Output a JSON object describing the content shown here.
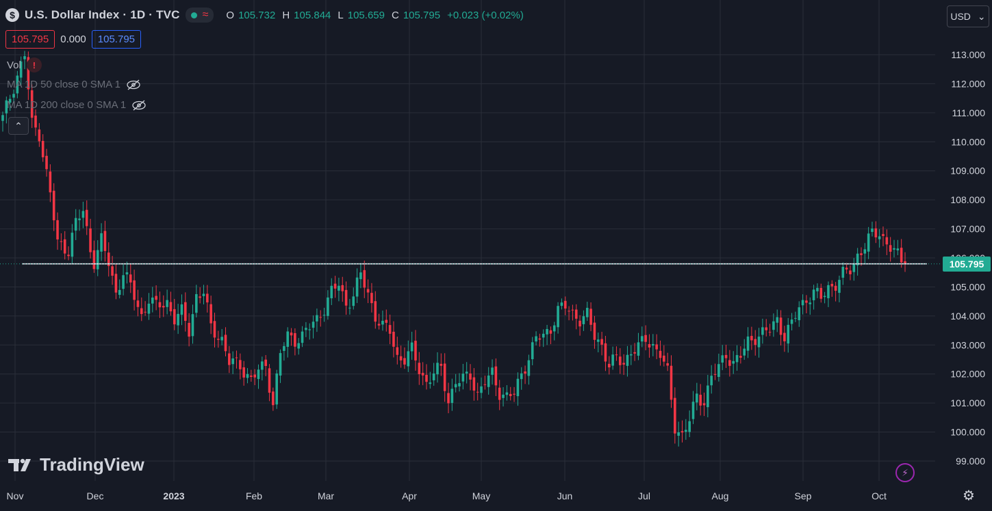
{
  "header": {
    "symbol_icon": "$",
    "title": "U.S. Dollar Index · 1D · TVC",
    "status_dot_color": "#22ab94",
    "ohlc": [
      {
        "key": "O",
        "value": "105.732"
      },
      {
        "key": "H",
        "value": "105.844"
      },
      {
        "key": "L",
        "value": "105.659"
      },
      {
        "key": "C",
        "value": "105.795"
      }
    ],
    "change": "+0.023 (+0.02%)"
  },
  "price_boxes": {
    "bid": "105.795",
    "spread": "0.000",
    "ask": "105.795"
  },
  "indicators": {
    "vol": "Vol",
    "warning_icon": "!",
    "ma50": "MA  1D 50 close 0 SMA 1",
    "ma200": "MA  1D 200 close 0 SMA 1"
  },
  "currency": {
    "label": "USD",
    "icon": "chevron-down-icon"
  },
  "branding": {
    "logo_text": "TradingView"
  },
  "colors": {
    "up": "#22ab94",
    "down": "#f23645",
    "background": "#161a25",
    "grid": "#2a2e39"
  },
  "chart_data": {
    "type": "candlestick",
    "ylim": [
      98.4,
      113.7
    ],
    "y_ticks": [
      "113.000",
      "112.000",
      "111.000",
      "110.000",
      "109.000",
      "108.000",
      "107.000",
      "106.000",
      "105.000",
      "104.000",
      "103.000",
      "102.000",
      "101.000",
      "100.000",
      "99.000"
    ],
    "x_labels": [
      "Nov",
      "Dec",
      "2023",
      "Feb",
      "Mar",
      "Apr",
      "May",
      "Jun",
      "Jul",
      "Aug",
      "Sep",
      "Oct"
    ],
    "last_price": "105.795",
    "horizontal_line": 105.795,
    "close_path": [
      [
        0,
        110.8
      ],
      [
        4,
        112.3
      ],
      [
        6,
        113.0
      ],
      [
        8,
        110.6
      ],
      [
        10,
        110.3
      ],
      [
        13,
        108.2
      ],
      [
        15,
        106.5
      ],
      [
        18,
        106.3
      ],
      [
        20,
        107.2
      ],
      [
        22,
        107.6
      ],
      [
        24,
        106.3
      ],
      [
        25,
        105.9
      ],
      [
        27,
        106.6
      ],
      [
        29,
        105.8
      ],
      [
        31,
        104.8
      ],
      [
        33,
        105.5
      ],
      [
        35,
        105.0
      ],
      [
        38,
        104.0
      ],
      [
        40,
        104.6
      ],
      [
        42,
        104.3
      ],
      [
        45,
        104.5
      ],
      [
        47,
        103.9
      ],
      [
        49,
        104.1
      ],
      [
        51,
        103.5
      ],
      [
        53,
        104.7
      ],
      [
        55,
        104.8
      ],
      [
        57,
        103.6
      ],
      [
        60,
        103.2
      ],
      [
        62,
        102.4
      ],
      [
        65,
        102.3
      ],
      [
        68,
        101.8
      ],
      [
        70,
        102.1
      ],
      [
        72,
        102.3
      ],
      [
        74,
        101.0
      ],
      [
        76,
        102.7
      ],
      [
        78,
        103.3
      ],
      [
        80,
        103.2
      ],
      [
        82,
        103.3
      ],
      [
        84,
        103.6
      ],
      [
        86,
        103.9
      ],
      [
        88,
        104.3
      ],
      [
        90,
        104.8
      ],
      [
        92,
        105.1
      ],
      [
        94,
        104.4
      ],
      [
        96,
        104.7
      ],
      [
        98,
        105.4
      ],
      [
        100,
        104.8
      ],
      [
        102,
        104.0
      ],
      [
        104,
        103.6
      ],
      [
        106,
        103.5
      ],
      [
        108,
        102.6
      ],
      [
        110,
        102.5
      ],
      [
        112,
        102.8
      ],
      [
        114,
        102.2
      ],
      [
        116,
        101.7
      ],
      [
        118,
        102.0
      ],
      [
        120,
        102.2
      ],
      [
        122,
        101.1
      ],
      [
        124,
        101.7
      ],
      [
        126,
        101.8
      ],
      [
        128,
        102.0
      ],
      [
        130,
        101.3
      ],
      [
        132,
        101.7
      ],
      [
        134,
        102.0
      ],
      [
        136,
        101.4
      ],
      [
        138,
        101.2
      ],
      [
        140,
        101.3
      ],
      [
        142,
        102.0
      ],
      [
        144,
        102.6
      ],
      [
        146,
        103.2
      ],
      [
        148,
        103.3
      ],
      [
        150,
        103.6
      ],
      [
        152,
        104.2
      ],
      [
        154,
        104.3
      ],
      [
        156,
        104.1
      ],
      [
        158,
        103.9
      ],
      [
        160,
        104.0
      ],
      [
        162,
        103.3
      ],
      [
        164,
        103.0
      ],
      [
        166,
        102.3
      ],
      [
        168,
        102.5
      ],
      [
        170,
        102.4
      ],
      [
        172,
        102.8
      ],
      [
        174,
        102.9
      ],
      [
        176,
        103.2
      ],
      [
        178,
        103.0
      ],
      [
        180,
        102.7
      ],
      [
        182,
        102.0
      ],
      [
        184,
        100.2
      ],
      [
        186,
        99.9
      ],
      [
        188,
        100.4
      ],
      [
        190,
        101.2
      ],
      [
        192,
        101.1
      ],
      [
        194,
        101.9
      ],
      [
        196,
        102.2
      ],
      [
        198,
        102.7
      ],
      [
        200,
        102.4
      ],
      [
        202,
        102.6
      ],
      [
        204,
        103.1
      ],
      [
        206,
        103.3
      ],
      [
        208,
        103.4
      ],
      [
        210,
        103.5
      ],
      [
        212,
        103.9
      ],
      [
        214,
        103.3
      ],
      [
        216,
        103.7
      ],
      [
        218,
        104.3
      ],
      [
        220,
        104.6
      ],
      [
        222,
        104.8
      ],
      [
        224,
        104.6
      ],
      [
        226,
        105.0
      ],
      [
        228,
        105.1
      ],
      [
        230,
        105.4
      ],
      [
        232,
        105.6
      ],
      [
        234,
        106.1
      ],
      [
        236,
        106.4
      ],
      [
        238,
        106.8
      ],
      [
        240,
        106.9
      ],
      [
        242,
        106.5
      ],
      [
        244,
        106.2
      ],
      [
        246,
        105.9
      ],
      [
        247,
        105.795
      ]
    ]
  }
}
